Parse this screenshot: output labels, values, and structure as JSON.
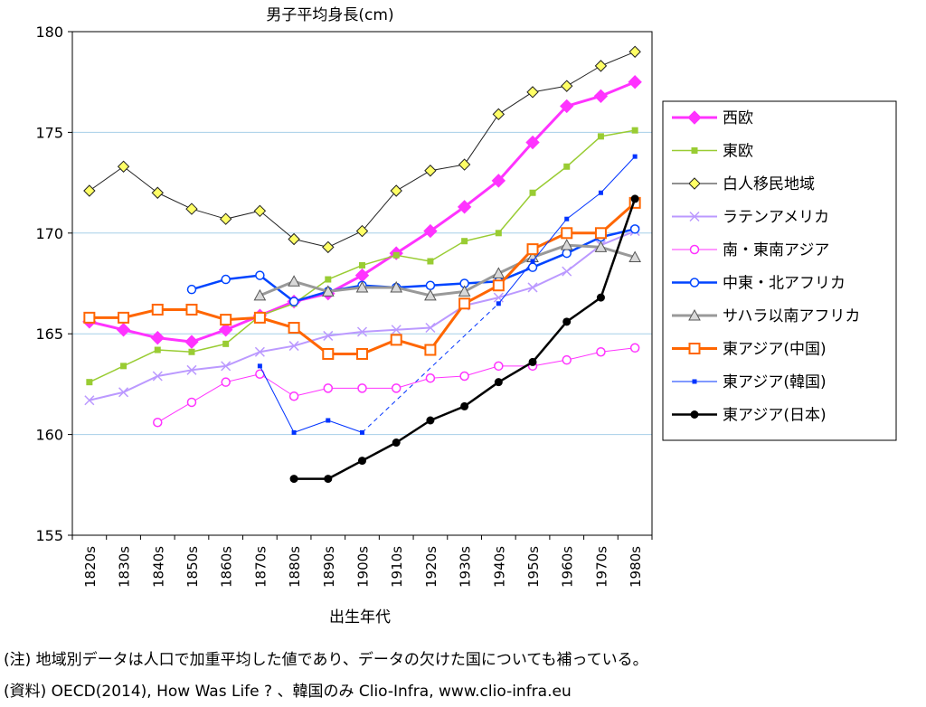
{
  "chart_data": {
    "type": "line",
    "title": "男子平均身長(cm)",
    "xlabel": "出生年代",
    "ylabel": "",
    "ylim": [
      155,
      180
    ],
    "yticks": [
      155,
      160,
      165,
      170,
      175,
      180
    ],
    "grid": "horizontal",
    "legend_position": "right",
    "categories": [
      "1820s",
      "1830s",
      "1840s",
      "1850s",
      "1860s",
      "1870s",
      "1880s",
      "1890s",
      "1900s",
      "1910s",
      "1920s",
      "1930s",
      "1940s",
      "1950s",
      "1960s",
      "1970s",
      "1980s"
    ],
    "series": [
      {
        "name": "西欧",
        "color": "#ff33ff",
        "marker": "diamond",
        "width": 3,
        "dash": "",
        "values": [
          165.6,
          165.2,
          164.8,
          164.6,
          165.2,
          165.9,
          166.6,
          167.0,
          167.9,
          169.0,
          170.1,
          171.3,
          172.6,
          174.5,
          176.3,
          176.8,
          177.5
        ]
      },
      {
        "name": "東欧",
        "color": "#99cc33",
        "marker": "square-filled",
        "width": 1.5,
        "dash": "",
        "values": [
          162.6,
          163.4,
          164.2,
          164.1,
          164.5,
          165.9,
          166.5,
          167.7,
          168.4,
          168.9,
          168.6,
          169.6,
          170.0,
          172.0,
          173.3,
          174.8,
          175.1
        ]
      },
      {
        "name": "白人移民地域",
        "color": "#222222",
        "marker": "diamond-yellow",
        "width": 1,
        "dash": "",
        "values": [
          172.1,
          173.3,
          172.0,
          171.2,
          170.7,
          171.1,
          169.7,
          169.3,
          170.1,
          172.1,
          173.1,
          173.4,
          175.9,
          177.0,
          177.3,
          178.3,
          179.0
        ]
      },
      {
        "name": "ラテンアメリカ",
        "color": "#bb99ff",
        "marker": "x",
        "width": 2,
        "dash": "",
        "values": [
          161.7,
          162.1,
          162.9,
          163.2,
          163.4,
          164.1,
          164.4,
          164.9,
          165.1,
          165.2,
          165.3,
          166.4,
          166.8,
          167.3,
          168.1,
          169.4,
          170.1
        ]
      },
      {
        "name": "南・東南アジア",
        "color": "#ff33ff",
        "marker": "circle-open",
        "width": 1,
        "dash": "",
        "values": [
          null,
          null,
          160.6,
          161.6,
          162.6,
          163.0,
          161.9,
          162.3,
          162.3,
          162.3,
          162.8,
          162.9,
          163.4,
          163.4,
          163.7,
          164.1,
          164.3
        ]
      },
      {
        "name": "中東・北アフリカ",
        "color": "#0044ff",
        "marker": "circle-open",
        "width": 2.5,
        "dash": "",
        "values": [
          null,
          null,
          null,
          167.2,
          167.7,
          167.9,
          166.6,
          167.1,
          167.4,
          167.3,
          167.4,
          167.5,
          167.6,
          168.3,
          169.0,
          169.8,
          170.2
        ]
      },
      {
        "name": "サハラ以南アフリカ",
        "color": "#999999",
        "marker": "triangle",
        "width": 3,
        "dash": "",
        "values": [
          null,
          null,
          null,
          null,
          null,
          166.9,
          167.6,
          167.1,
          167.3,
          167.3,
          166.9,
          167.1,
          168.0,
          168.8,
          169.4,
          169.3,
          168.8
        ]
      },
      {
        "name": "東アジア(中国)",
        "color": "#ff6600",
        "marker": "square-open",
        "width": 3,
        "dash": "",
        "values": [
          165.8,
          165.8,
          166.2,
          166.2,
          165.7,
          165.8,
          165.3,
          164.0,
          164.0,
          164.7,
          164.2,
          166.5,
          167.4,
          169.2,
          170.0,
          170.0,
          171.5
        ]
      },
      {
        "name": "東アジア(韓国)",
        "color": "#0033ff",
        "marker": "square-small",
        "width": 1,
        "dash": "",
        "values": [
          null,
          null,
          null,
          null,
          null,
          163.4,
          160.1,
          160.7,
          160.1,
          null,
          null,
          null,
          166.5,
          168.6,
          170.7,
          172.0,
          173.8
        ]
      },
      {
        "name": "東アジア(日本)",
        "color": "#000000",
        "marker": "circle-filled",
        "width": 2.5,
        "dash": "",
        "values": [
          null,
          null,
          null,
          null,
          null,
          null,
          157.8,
          157.8,
          158.7,
          159.6,
          160.7,
          161.4,
          162.6,
          163.6,
          165.6,
          166.8,
          171.7
        ]
      }
    ],
    "dashed_segments": [
      {
        "series": "東アジア(韓国)",
        "from": "1900s",
        "to": "1940s",
        "values": [
          160.1,
          166.5
        ]
      }
    ]
  },
  "notes": {
    "line1": "(注) 地域別データは人口で加重平均した値であり、データの欠けた国についても補っている。",
    "line2": "(資料) OECD(2014), How Was Life ? 、韓国のみ Clio-Infra, www.clio-infra.eu"
  }
}
